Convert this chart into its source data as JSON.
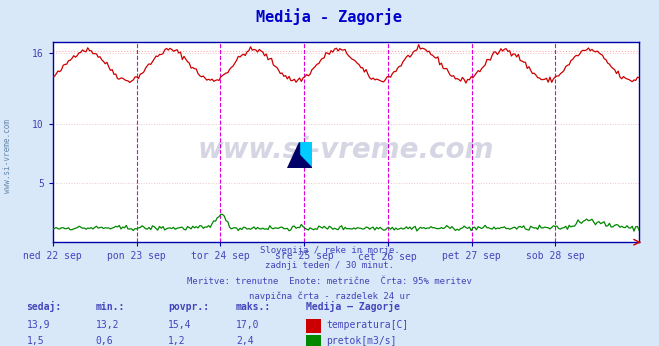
{
  "title": "Medija - Zagorje",
  "title_color": "#0000cc",
  "bg_color": "#d8e8f8",
  "plot_bg_color": "#ffffff",
  "grid_color": "#e8c8c8",
  "x_labels": [
    "ned 22 sep",
    "pon 23 sep",
    "tor 24 sep",
    "sre 25 sep",
    "čet 26 sep",
    "pet 27 sep",
    "sob 28 sep"
  ],
  "y_min": 0,
  "y_max": 17,
  "temp_color": "#cc0000",
  "flow_color": "#008800",
  "vline_color": "#dd00dd",
  "hline_color": "#ffaaaa",
  "axis_color": "#0000aa",
  "text_color": "#4444bb",
  "footer_lines": [
    "Slovenija / reke in morje.",
    "zadnji teden / 30 minut.",
    "Meritve: trenutne  Enote: metrične  Črta: 95% meritev",
    "navpična črta - razdelek 24 ur"
  ],
  "table_headers": [
    "sedaj:",
    "min.:",
    "povpr.:",
    "maks.:",
    "Medija – Zagorje"
  ],
  "table_row1": [
    "13,9",
    "13,2",
    "15,4",
    "17,0"
  ],
  "table_row2": [
    "1,5",
    "0,6",
    "1,2",
    "2,4"
  ],
  "legend_labels": [
    "temperatura[C]",
    "pretok[m3/s]"
  ],
  "n_points": 336,
  "watermark": "www.si-vreme.com",
  "watermark_color": "#1a1a6e",
  "watermark_alpha": 0.18
}
